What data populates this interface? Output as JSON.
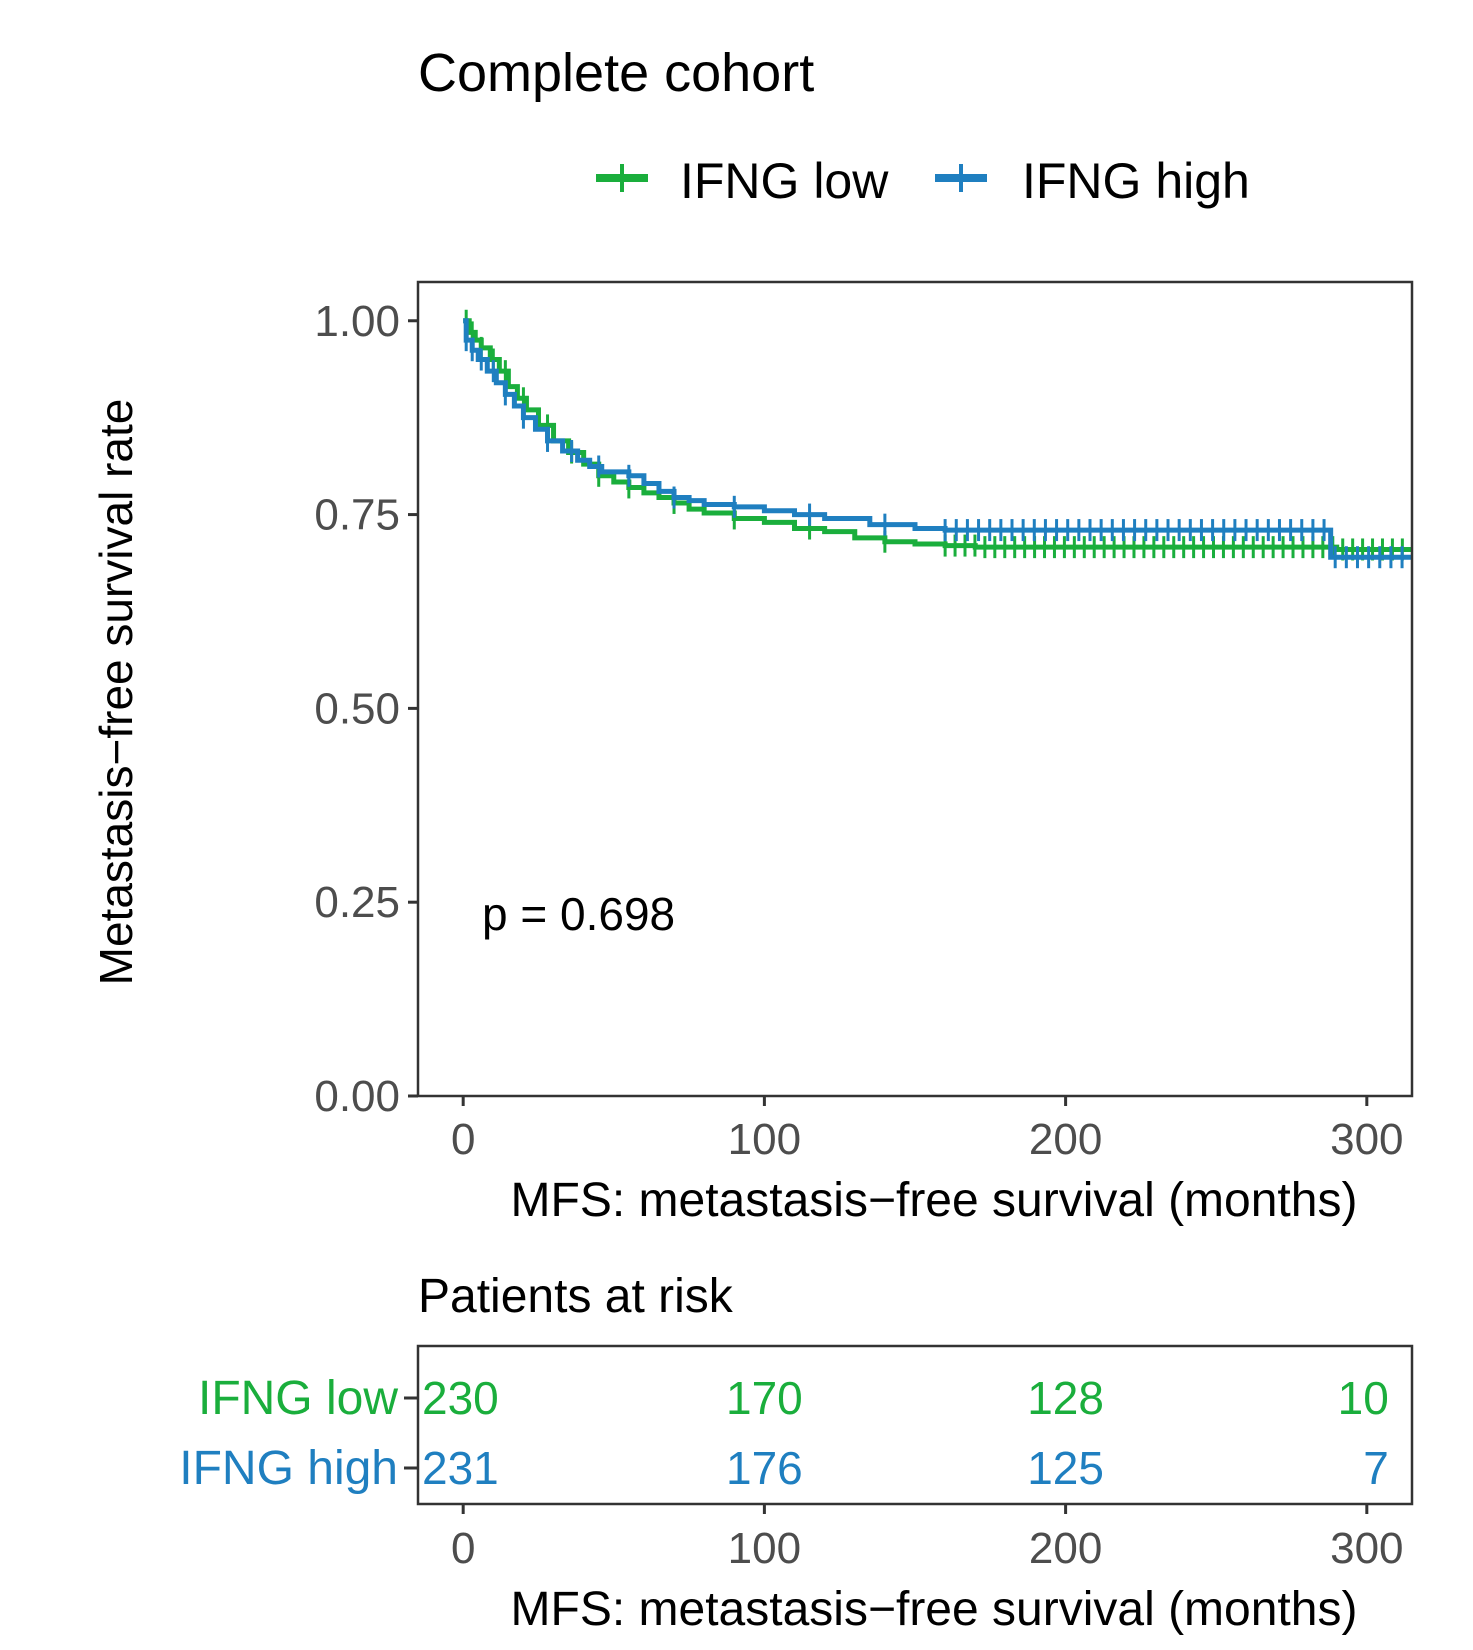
{
  "chart_data": [
    {
      "type": "line",
      "subtype": "kaplan-meier",
      "title": "Complete cohort",
      "xlabel": "MFS: metastasis−free survival (months)",
      "ylabel": "Metastasis−free survival rate",
      "xlim": [
        -15,
        315
      ],
      "ylim": [
        0,
        1.05
      ],
      "x_ticks": [
        0,
        100,
        200,
        300
      ],
      "x_tick_labels": [
        "0",
        "100",
        "200",
        "300"
      ],
      "y_ticks": [
        0,
        0.25,
        0.5,
        0.75,
        1.0
      ],
      "y_tick_labels": [
        "0.00",
        "0.25",
        "0.50",
        "0.75",
        "1.00"
      ],
      "legend_position": "top",
      "annotation": "p = 0.698",
      "series": [
        {
          "name": "IFNG low",
          "color": "#1aae3c",
          "x": [
            0,
            2,
            4,
            6,
            9,
            12,
            15,
            18,
            21,
            25,
            30,
            35,
            40,
            45,
            50,
            55,
            60,
            65,
            70,
            75,
            80,
            90,
            100,
            110,
            120,
            130,
            140,
            150,
            160,
            170,
            200,
            250,
            290,
            300,
            315
          ],
          "y": [
            1.0,
            0.985,
            0.975,
            0.965,
            0.95,
            0.935,
            0.915,
            0.9,
            0.885,
            0.865,
            0.845,
            0.83,
            0.815,
            0.8,
            0.792,
            0.785,
            0.778,
            0.772,
            0.765,
            0.757,
            0.752,
            0.745,
            0.74,
            0.732,
            0.728,
            0.72,
            0.715,
            0.712,
            0.71,
            0.708,
            0.708,
            0.708,
            0.705,
            0.705,
            0.705
          ],
          "censor_start": 160
        },
        {
          "name": "IFNG high",
          "color": "#1f7fc0",
          "x": [
            0,
            1,
            3,
            5,
            8,
            11,
            14,
            17,
            20,
            24,
            28,
            33,
            38,
            42,
            46,
            50,
            55,
            60,
            65,
            70,
            75,
            80,
            90,
            100,
            110,
            120,
            135,
            150,
            160,
            200,
            250,
            288,
            300,
            315
          ],
          "y": [
            1.0,
            0.975,
            0.962,
            0.95,
            0.935,
            0.92,
            0.905,
            0.89,
            0.875,
            0.86,
            0.845,
            0.832,
            0.82,
            0.812,
            0.805,
            0.805,
            0.8,
            0.79,
            0.78,
            0.772,
            0.768,
            0.763,
            0.76,
            0.755,
            0.75,
            0.745,
            0.737,
            0.732,
            0.73,
            0.73,
            0.73,
            0.695,
            0.695,
            0.695
          ],
          "censor_start": 160
        }
      ]
    },
    {
      "type": "table",
      "title": "Patients at risk",
      "xlabel": "MFS: metastasis−free survival (months)",
      "xlim": [
        -15,
        315
      ],
      "x_ticks": [
        0,
        100,
        200,
        300
      ],
      "x_tick_labels": [
        "0",
        "100",
        "200",
        "300"
      ],
      "rows": [
        {
          "label": "IFNG low",
          "color": "#1aae3c",
          "values": [
            "230",
            "170",
            "128",
            "10"
          ]
        },
        {
          "label": "IFNG high",
          "color": "#1f7fc0",
          "values": [
            "231",
            "176",
            "125",
            "7"
          ]
        }
      ]
    }
  ]
}
